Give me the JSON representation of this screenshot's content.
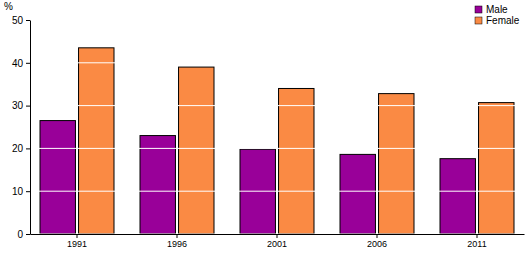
{
  "chart_data": {
    "type": "bar",
    "ylabel": "%",
    "categories": [
      "1991",
      "1996",
      "2001",
      "2006",
      "2011"
    ],
    "series": [
      {
        "name": "Male",
        "color": "#990099",
        "values": [
          26.5,
          23,
          19.8,
          18.6,
          17.6
        ]
      },
      {
        "name": "Female",
        "color": "#fa8a44",
        "values": [
          43.5,
          39,
          34,
          32.8,
          30.7
        ]
      }
    ],
    "ylim": [
      0,
      50
    ],
    "yticks": [
      0,
      10,
      20,
      30,
      40,
      50
    ],
    "grid": true,
    "legend": "upper right"
  }
}
